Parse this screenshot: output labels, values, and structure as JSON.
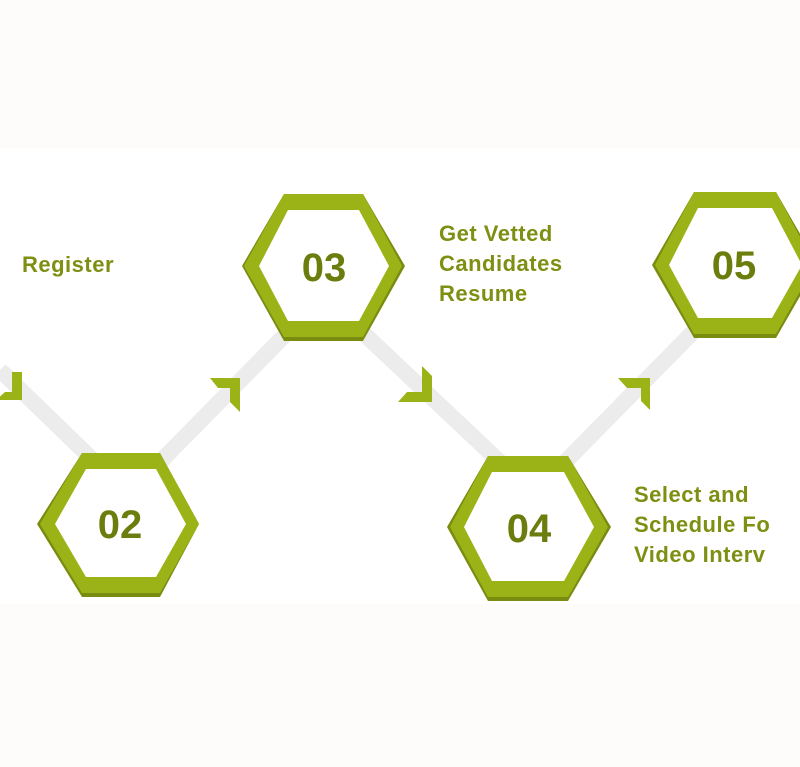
{
  "steps": [
    {
      "number": "",
      "lines": [
        "Register"
      ]
    },
    {
      "number": "02",
      "lines": []
    },
    {
      "number": "03",
      "lines": [
        "Get Vetted",
        "Candidates",
        "Resume"
      ]
    },
    {
      "number": "04",
      "lines": [
        "Select and",
        "Schedule Fo",
        "Video Interv"
      ]
    },
    {
      "number": "05",
      "lines": []
    }
  ],
  "colors": {
    "hex_light": "#9cb318",
    "hex_dark": "#7a8c10",
    "number_text": "#6b7d0c",
    "label_text": "#7e8f12",
    "connector": "#ececec",
    "background": "#fdfcfa"
  }
}
